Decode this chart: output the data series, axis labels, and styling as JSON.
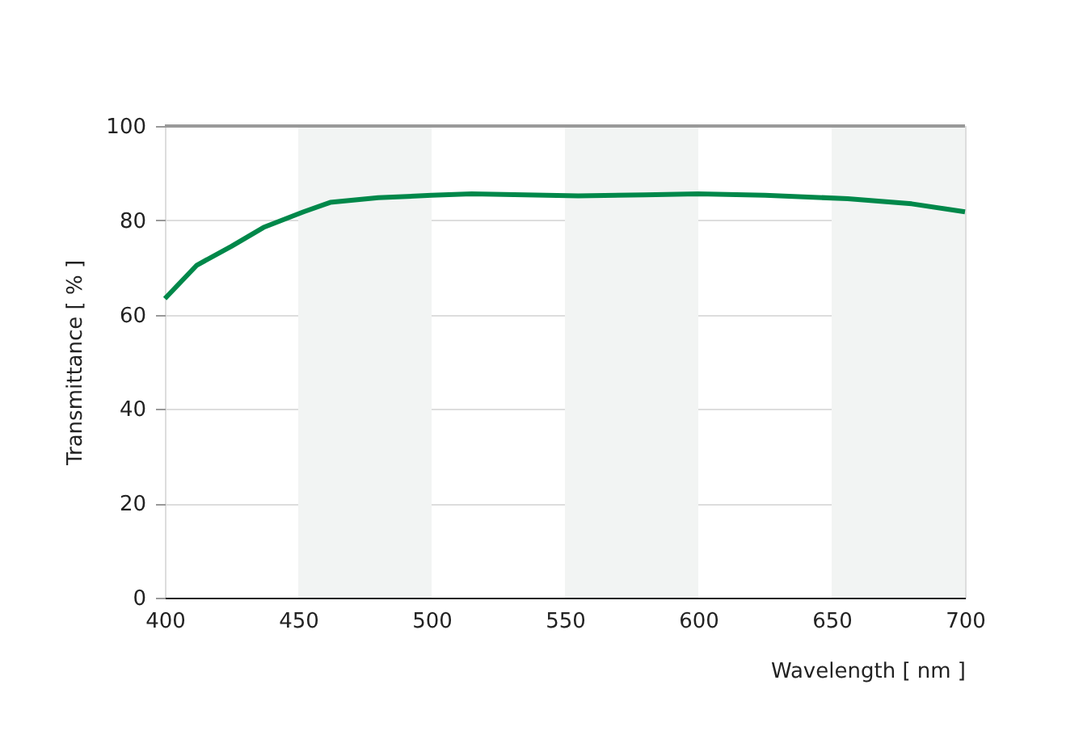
{
  "chart_data": {
    "type": "line",
    "xlabel": "Wavelength [ nm ]",
    "ylabel": "Transmittance [ % ]",
    "x": [
      400,
      412,
      425,
      437,
      452,
      462,
      480,
      500,
      515,
      535,
      555,
      580,
      600,
      625,
      656,
      680,
      700
    ],
    "series": [
      {
        "color": "#00884a",
        "values": [
          63.4,
          70.5,
          74.5,
          78.5,
          81.8,
          83.8,
          84.8,
          85.3,
          85.6,
          85.4,
          85.2,
          85.4,
          85.6,
          85.3,
          84.6,
          83.5,
          81.8
        ]
      }
    ],
    "xlim": [
      400,
      700
    ],
    "xticks": [
      400,
      450,
      500,
      550,
      600,
      650,
      700
    ],
    "ylim": [
      0,
      100
    ],
    "yticks": [
      0,
      20,
      40,
      60,
      80,
      100
    ],
    "grid": "y",
    "marker": "none",
    "line_style": "solid",
    "bands": [
      {
        "axis": "x",
        "from": 450,
        "to": 500,
        "label": null,
        "color": "#f2f4f3"
      },
      {
        "axis": "x",
        "from": 550,
        "to": 600,
        "label": null,
        "color": "#f2f4f3"
      },
      {
        "axis": "x",
        "from": 650,
        "to": 700,
        "label": null,
        "color": "#f2f4f3"
      }
    ]
  }
}
